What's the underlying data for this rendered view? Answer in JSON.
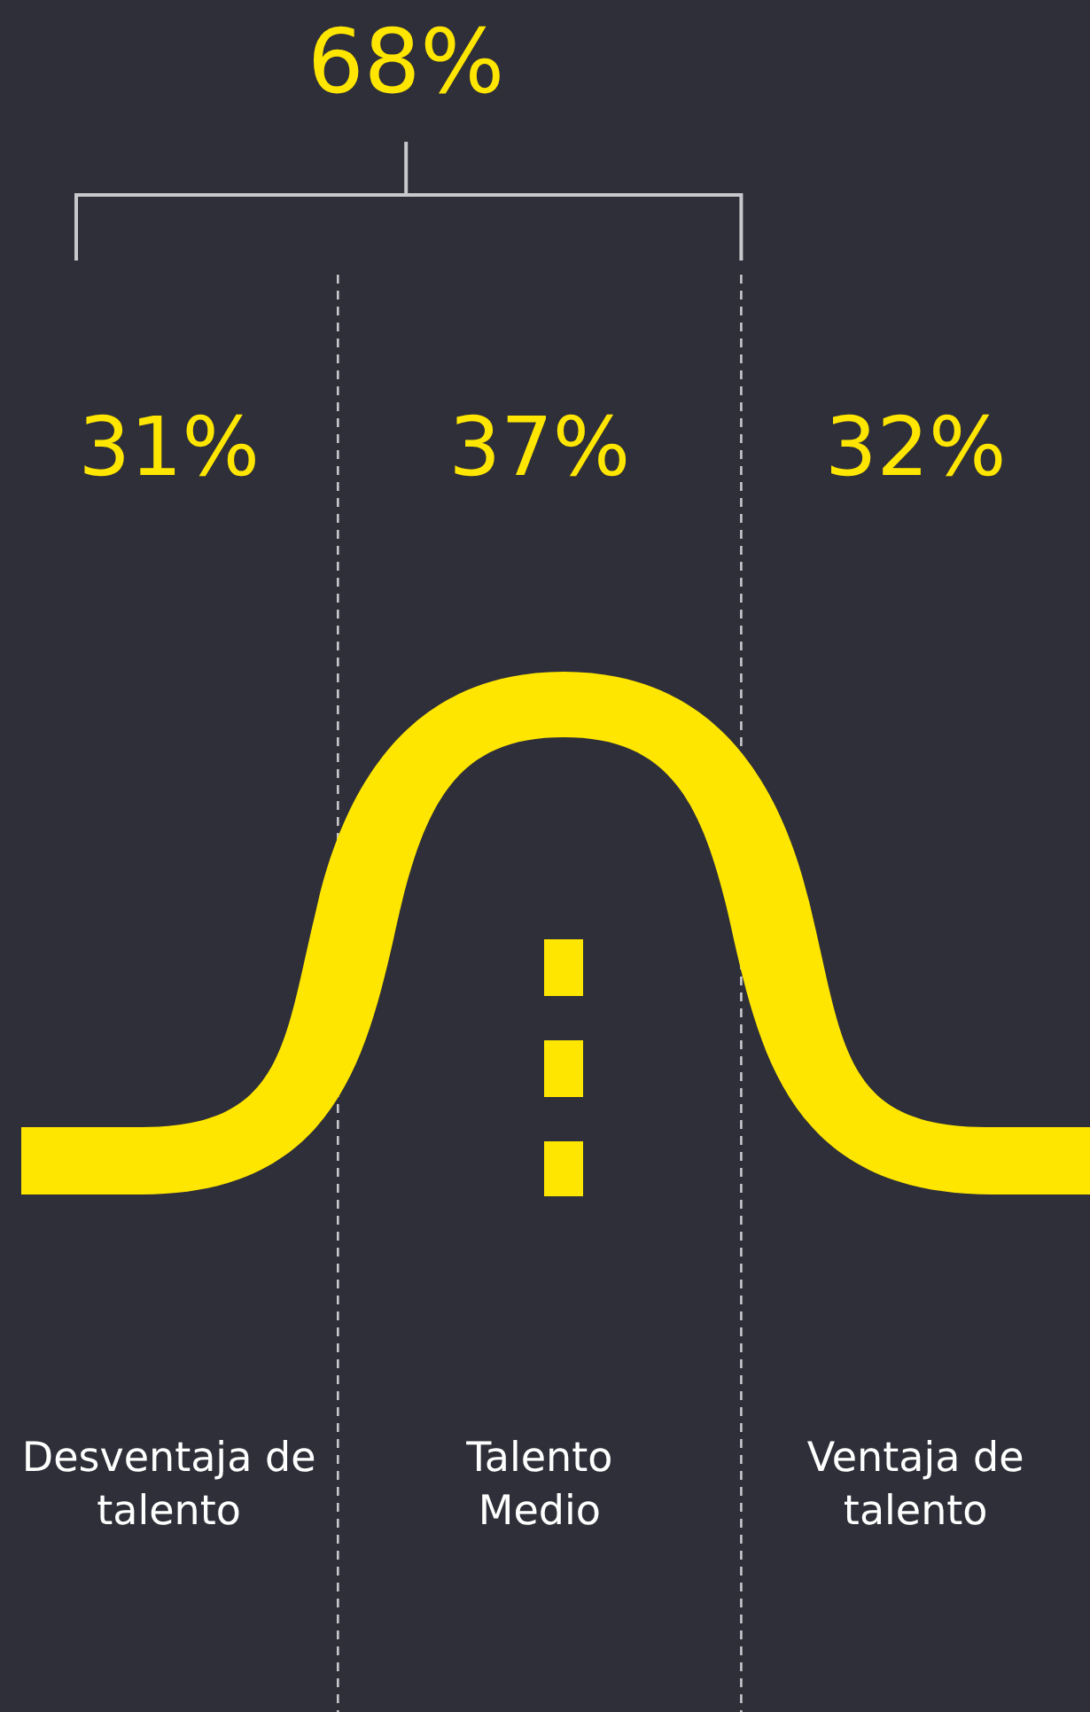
{
  "chart_data": {
    "type": "other",
    "categories": [
      "Desventaja de talento",
      "Talento Medio",
      "Ventaja de talento"
    ],
    "values": [
      31,
      37,
      32
    ],
    "value_labels": [
      "31%",
      "37%",
      "32%"
    ],
    "annotations": [
      "68%"
    ],
    "color": "#ffe600"
  }
}
